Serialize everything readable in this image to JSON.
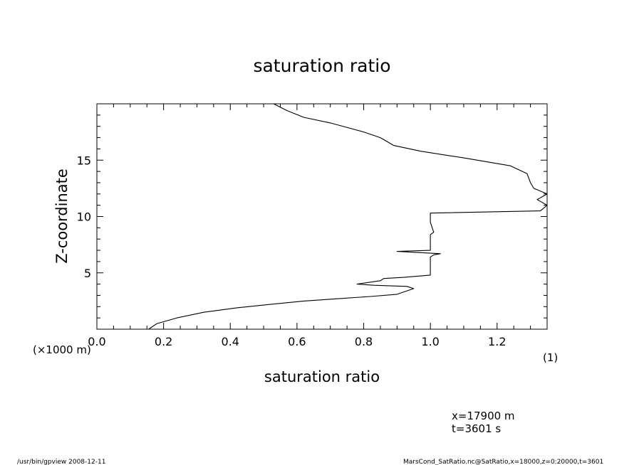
{
  "chart_data": {
    "type": "line",
    "title": "saturation ratio",
    "xlabel": "saturation ratio",
    "xunit": "(1)",
    "ylabel": "Z-coordinate",
    "yunit": "(×1000 m)",
    "xlim": [
      0.0,
      1.35
    ],
    "ylim": [
      0.0,
      20.0
    ],
    "x_ticks": [
      "0.0",
      "0.2",
      "0.4",
      "0.6",
      "0.8",
      "1.0",
      "1.2"
    ],
    "y_ticks": [
      "5",
      "10",
      "15"
    ],
    "grid": false,
    "series": [
      {
        "x": [
          0.155,
          0.18,
          0.24,
          0.32,
          0.42,
          0.52,
          0.62,
          0.72,
          0.82,
          0.9,
          0.95,
          0.93,
          0.83,
          0.78,
          0.85,
          0.86,
          0.92,
          1.0,
          1.0,
          1.01,
          1.03,
          0.9,
          1.0,
          1.0,
          1.0,
          1.01,
          1.0,
          1.0,
          1.0,
          1.33,
          1.35,
          1.32,
          1.35,
          1.31,
          1.3,
          1.29,
          1.24,
          1.1,
          0.97,
          0.89,
          0.85,
          0.8,
          0.7,
          0.62,
          0.57,
          0.53
        ],
        "y": [
          0.0,
          0.5,
          1.0,
          1.5,
          1.9,
          2.2,
          2.5,
          2.7,
          2.9,
          3.1,
          3.6,
          3.8,
          3.9,
          4.0,
          4.3,
          4.5,
          4.6,
          4.8,
          6.4,
          6.6,
          6.7,
          6.9,
          7.0,
          8.0,
          8.4,
          8.6,
          9.5,
          10.0,
          10.3,
          10.5,
          11.0,
          11.5,
          12.0,
          12.5,
          13.0,
          13.8,
          14.5,
          15.2,
          15.8,
          16.3,
          17.0,
          17.5,
          18.3,
          18.8,
          19.4,
          20.0
        ]
      }
    ]
  },
  "info": {
    "x_slice": "x=17900 m",
    "time": "t=3601 s"
  },
  "footer": {
    "left": "/usr/bin/gpview  2008-12-11",
    "right": "MarsCond_SatRatio.nc@SatRatio,x=18000,z=0:20000,t=3601"
  }
}
